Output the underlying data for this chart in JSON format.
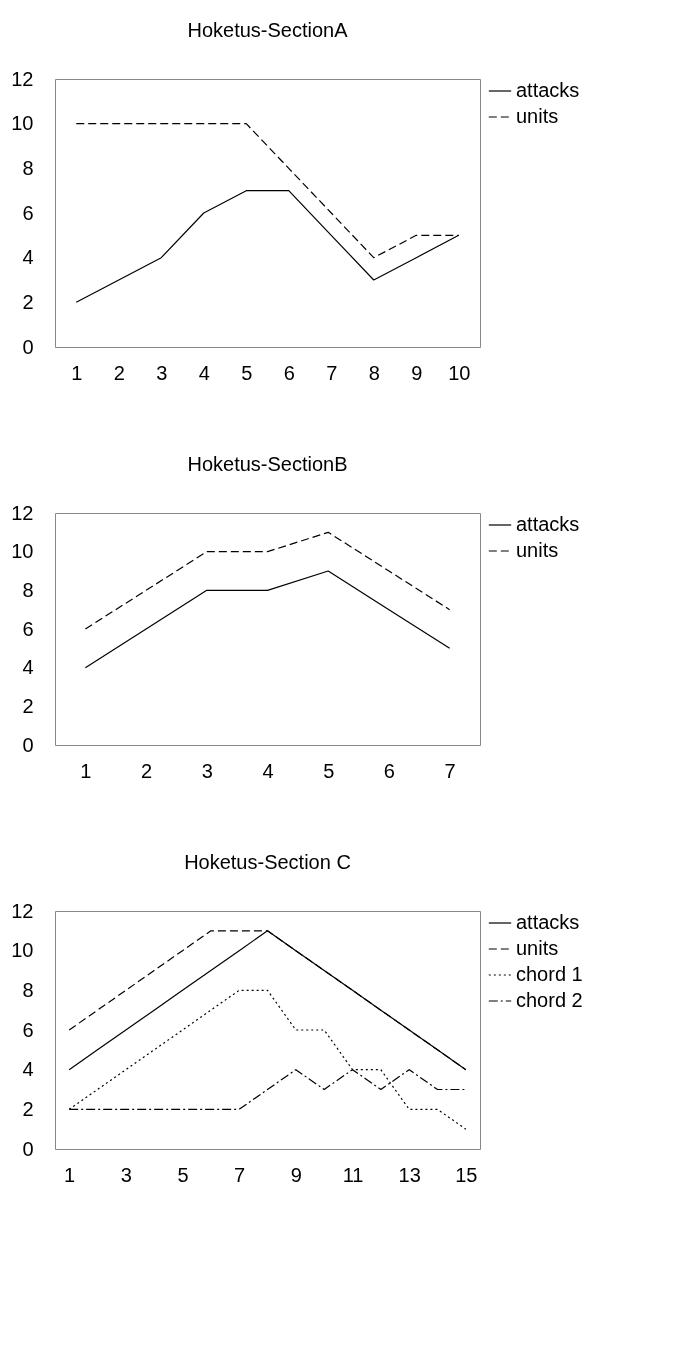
{
  "chart_data": [
    {
      "type": "line",
      "title": "Hoketus-SectionA",
      "x": [
        1,
        2,
        3,
        4,
        5,
        6,
        7,
        8,
        9,
        10
      ],
      "xlim": [
        0.5,
        10.5
      ],
      "xticks": [
        1,
        2,
        3,
        4,
        5,
        6,
        7,
        8,
        9,
        10
      ],
      "ylim": [
        0,
        12
      ],
      "yticks": [
        0,
        2,
        4,
        6,
        8,
        10,
        12
      ],
      "grid": false,
      "legend": "right",
      "marker": "none",
      "series": [
        {
          "name": "attacks",
          "color": "#000000",
          "line_style": "solid",
          "values": [
            2,
            3,
            4,
            6,
            7,
            7,
            5,
            3,
            4,
            5
          ]
        },
        {
          "name": "units",
          "color": "#000000",
          "line_style": "dashed",
          "values": [
            10,
            10,
            10,
            10,
            10,
            8,
            6,
            4,
            5,
            5
          ]
        }
      ]
    },
    {
      "type": "line",
      "title": "Hoketus-SectionB",
      "x": [
        1,
        2,
        3,
        4,
        5,
        6,
        7
      ],
      "xlim": [
        0.5,
        7.5
      ],
      "xticks": [
        1,
        2,
        3,
        4,
        5,
        6,
        7
      ],
      "ylim": [
        0,
        12
      ],
      "yticks": [
        0,
        2,
        4,
        6,
        8,
        10,
        12
      ],
      "grid": false,
      "legend": "right",
      "marker": "none",
      "series": [
        {
          "name": "attacks",
          "color": "#000000",
          "line_style": "solid",
          "values": [
            4,
            6,
            8,
            8,
            9,
            7,
            5
          ]
        },
        {
          "name": "units",
          "color": "#000000",
          "line_style": "dashed",
          "values": [
            6,
            8,
            10,
            10,
            11,
            9,
            7
          ]
        }
      ]
    },
    {
      "type": "line",
      "title": "Hoketus-Section C",
      "x": [
        1,
        2,
        3,
        4,
        5,
        6,
        7,
        8,
        9,
        10,
        11,
        12,
        13,
        14,
        15
      ],
      "xlim": [
        0.5,
        15.5
      ],
      "xticks": [
        1,
        3,
        5,
        7,
        9,
        11,
        13,
        15
      ],
      "ylim": [
        0,
        12
      ],
      "yticks": [
        0,
        2,
        4,
        6,
        8,
        10,
        12
      ],
      "grid": false,
      "legend": "right",
      "marker": "none",
      "series": [
        {
          "name": "attacks",
          "color": "#000000",
          "line_style": "solid",
          "values": [
            4,
            5,
            6,
            7,
            8,
            9,
            10,
            11,
            10,
            9,
            8,
            7,
            6,
            5,
            4
          ]
        },
        {
          "name": "units",
          "color": "#000000",
          "line_style": "dashed",
          "values": [
            6,
            7,
            8,
            9,
            10,
            11,
            11,
            11,
            10,
            9,
            8,
            7,
            6,
            5,
            4
          ]
        },
        {
          "name": "chord 1",
          "color": "#000000",
          "line_style": "dotted",
          "values": [
            2,
            3,
            4,
            5,
            6,
            7,
            8,
            8,
            6,
            6,
            4,
            4,
            2,
            2,
            1
          ]
        },
        {
          "name": "chord 2",
          "color": "#000000",
          "line_style": "dashdot",
          "values": [
            2,
            2,
            2,
            2,
            2,
            2,
            2,
            3,
            4,
            3,
            4,
            3,
            4,
            3,
            3
          ]
        }
      ]
    }
  ]
}
